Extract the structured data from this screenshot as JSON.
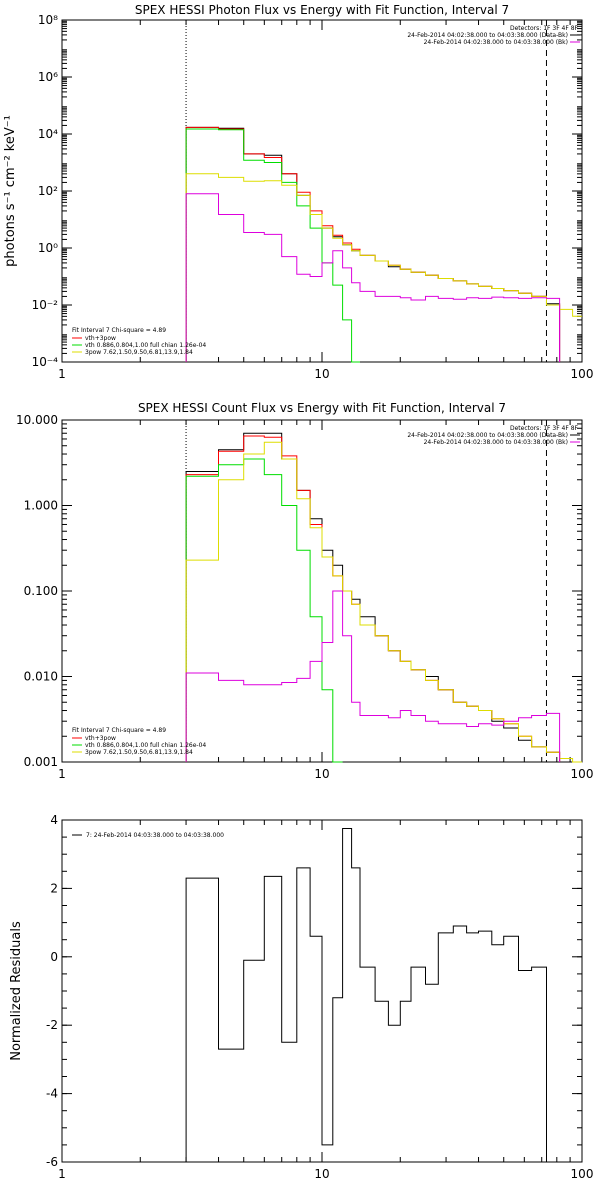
{
  "colors": {
    "total": "#000000",
    "vth_3pow": "#ff0000",
    "vth": "#00dd00",
    "3pow": "#dddd00",
    "data": "#000000",
    "bkg": "#dd00dd"
  },
  "top_right_legend": {
    "detectors": "Detectors: 1F 3F 4F 8F",
    "line1": "24-Feb-2014 04:02:38.000 to 04:03:38.000 (Data-Bk)",
    "line2": "24-Feb-2014 04:02:38.000 to 04:03:38.000 (Bk)"
  },
  "fit_legend": {
    "header": "Fit Interval  7    Chi-square = 4.89",
    "l1": "vth+3pow",
    "l2": "vth 0.886,0.804,1.00  full chian 1.26e-04",
    "l3": "3pow 7.62,1.50,9.50,6.81,13.9,1.84"
  },
  "resid_legend": "7: 24-Feb-2014 04:03:38.000 to 04:03:38.000",
  "chart_data": [
    {
      "type": "line",
      "title": "SPEX HESSI Photon Flux vs Energy with Fit Function, Interval 7",
      "ylabel": "photons s⁻¹ cm⁻² keV⁻¹",
      "xlabel": "",
      "xscale": "log",
      "yscale": "log",
      "xlim": [
        1,
        100
      ],
      "ylim": [
        0.0001,
        100000000
      ],
      "x_ticks": [
        "1",
        "10",
        "100"
      ],
      "y_ticks": [
        "10⁻⁴",
        "10⁻²",
        "10⁰",
        "10²",
        "10⁴",
        "10⁶",
        "10⁸"
      ],
      "vlines": [
        3.0,
        73.0
      ],
      "edges": [
        3.0,
        4.0,
        5.0,
        6.0,
        7.0,
        8.0,
        9.0,
        10.0,
        11.0,
        12.0,
        13.0,
        14.0,
        16.0,
        18.0,
        20.0,
        22.0,
        25.0,
        28.0,
        32.0,
        36.0,
        40.0,
        45.0,
        50.0,
        57.0,
        64.0,
        73.0,
        82.0,
        92.0,
        100.0
      ],
      "series": [
        {
          "name": "data",
          "values": [
            17000,
            16000,
            2000,
            1800,
            400,
            70,
            15,
            5,
            2.5,
            1.3,
            0.8,
            0.55,
            0.35,
            0.22,
            0.18,
            0.14,
            0.11,
            0.085,
            0.07,
            0.055,
            0.045,
            0.038,
            0.032,
            0.026,
            0.02,
            0.011,
            null,
            null
          ]
        },
        {
          "name": "vth+3pow",
          "values": [
            17000,
            15000,
            2000,
            1500,
            400,
            90,
            20,
            6,
            2.8,
            1.5,
            0.9,
            0.55,
            0.35,
            0.25,
            0.18,
            0.14,
            0.11,
            0.085,
            0.07,
            0.055,
            0.045,
            0.038,
            0.032,
            0.026,
            0.02,
            0.01,
            null,
            null
          ]
        },
        {
          "name": "vth",
          "values": [
            15000,
            14000,
            1200,
            1000,
            200,
            30,
            5,
            0.3,
            0.05,
            0.003,
            0.0001,
            null,
            null,
            null,
            null,
            null,
            null,
            null,
            null,
            null,
            null,
            null,
            null,
            null,
            null,
            null,
            null,
            null
          ]
        },
        {
          "name": "3pow",
          "values": [
            400,
            300,
            220,
            230,
            160,
            70,
            15,
            5,
            2.2,
            1.3,
            0.8,
            0.55,
            0.35,
            0.25,
            0.18,
            0.14,
            0.11,
            0.085,
            0.07,
            0.055,
            0.045,
            0.038,
            0.032,
            0.026,
            0.02,
            0.01,
            0.007,
            0.004
          ]
        },
        {
          "name": "bkg",
          "values": [
            80,
            15,
            3.5,
            3,
            0.5,
            0.12,
            0.1,
            0.3,
            0.8,
            0.2,
            0.06,
            0.03,
            0.02,
            0.02,
            0.018,
            0.015,
            0.02,
            0.017,
            0.016,
            0.018,
            0.017,
            0.019,
            0.018,
            0.017,
            0.018,
            0.017,
            null,
            null
          ]
        }
      ]
    },
    {
      "type": "line",
      "title": "SPEX HESSI Count Flux vs Energy with Fit Function, Interval 7",
      "ylabel": "",
      "xlabel": "",
      "xscale": "log",
      "yscale": "log",
      "xlim": [
        1,
        100
      ],
      "ylim": [
        0.001,
        10
      ],
      "x_ticks": [
        "1",
        "10",
        "100"
      ],
      "y_ticks": [
        "0.001",
        "0.010",
        "0.100",
        "1.000",
        "10.000"
      ],
      "vlines": [
        3.0,
        73.0
      ],
      "edges": [
        3.0,
        4.0,
        5.0,
        6.0,
        7.0,
        8.0,
        9.0,
        10.0,
        11.0,
        12.0,
        13.0,
        14.0,
        16.0,
        18.0,
        20.0,
        22.0,
        25.0,
        28.0,
        32.0,
        36.0,
        40.0,
        45.0,
        50.0,
        57.0,
        64.0,
        73.0,
        82.0,
        92.0,
        100.0
      ],
      "series": [
        {
          "name": "data",
          "values": [
            2.5,
            4.5,
            7,
            7,
            3.5,
            1.5,
            0.7,
            0.3,
            0.2,
            0.1,
            0.08,
            0.05,
            0.03,
            0.02,
            0.015,
            0.012,
            0.01,
            0.007,
            0.005,
            0.0045,
            0.004,
            0.003,
            0.0025,
            0.0018,
            0.0015,
            0.0013,
            null,
            null
          ]
        },
        {
          "name": "vth+3pow",
          "values": [
            2.3,
            4.3,
            6.5,
            6.3,
            3.8,
            1.5,
            0.6,
            0.25,
            0.15,
            0.1,
            0.07,
            0.04,
            0.03,
            0.02,
            0.015,
            0.012,
            0.009,
            0.007,
            0.005,
            0.0045,
            0.004,
            0.0032,
            0.0028,
            0.002,
            0.0015,
            0.0013,
            null,
            null
          ]
        },
        {
          "name": "vth",
          "values": [
            2.2,
            3.0,
            3.5,
            2.3,
            1.0,
            0.3,
            0.05,
            0.007,
            0.001,
            null,
            null,
            null,
            null,
            null,
            null,
            null,
            null,
            null,
            null,
            null,
            null,
            null,
            null,
            null,
            null,
            null,
            null,
            null
          ]
        },
        {
          "name": "3pow",
          "values": [
            0.23,
            2.0,
            4.0,
            5.5,
            3.5,
            1.2,
            0.55,
            0.25,
            0.15,
            0.1,
            0.07,
            0.04,
            0.03,
            0.02,
            0.015,
            0.012,
            0.009,
            0.007,
            0.005,
            0.0045,
            0.004,
            0.0032,
            0.0028,
            0.002,
            0.0015,
            0.0013,
            0.0011,
            0.0009
          ]
        },
        {
          "name": "bkg",
          "values": [
            0.011,
            0.009,
            0.008,
            0.008,
            0.0085,
            0.0095,
            0.015,
            0.025,
            0.1,
            0.03,
            0.005,
            0.0035,
            0.0035,
            0.0033,
            0.004,
            0.0035,
            0.003,
            0.0028,
            0.0028,
            0.0026,
            0.0028,
            0.0027,
            0.003,
            0.0033,
            0.0035,
            0.0037,
            null,
            null
          ]
        }
      ]
    },
    {
      "type": "line",
      "title": "",
      "ylabel": "Normalized Residuals",
      "xlabel": "",
      "xscale": "log",
      "yscale": "linear",
      "xlim": [
        1,
        100
      ],
      "ylim": [
        -6,
        4
      ],
      "x_ticks": [
        "1",
        "10",
        "100"
      ],
      "y_ticks": [
        "-6",
        "-4",
        "-2",
        "0",
        "2",
        "4"
      ],
      "edges": [
        3.0,
        4.0,
        5.0,
        6.0,
        7.0,
        8.0,
        9.0,
        10.0,
        11.0,
        12.0,
        13.0,
        14.0,
        16.0,
        18.0,
        20.0,
        22.0,
        25.0,
        28.0,
        32.0,
        36.0,
        40.0,
        45.0,
        50.0,
        57.0,
        64.0,
        73.0
      ],
      "series": [
        {
          "name": "7",
          "values": [
            2.3,
            -2.7,
            -0.1,
            2.35,
            -2.5,
            2.6,
            0.6,
            -5.5,
            -1.2,
            3.75,
            2.6,
            -0.3,
            -1.3,
            -2.0,
            -1.3,
            -0.3,
            -0.8,
            0.7,
            0.9,
            0.7,
            0.75,
            0.35,
            0.6,
            -0.4,
            -0.3,
            -0.4
          ]
        }
      ]
    }
  ]
}
